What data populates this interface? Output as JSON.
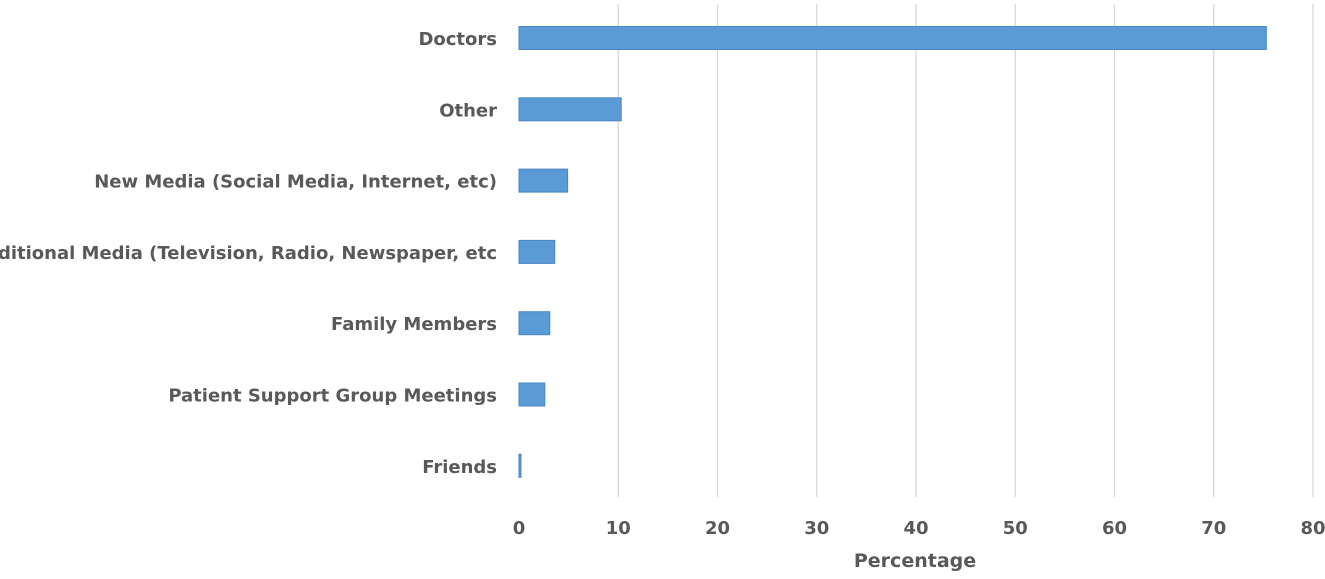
{
  "chart_data": {
    "type": "bar",
    "orientation": "horizontal",
    "title": "",
    "xlabel": "Percentage",
    "ylabel": "",
    "categories": [
      "Doctors",
      "Other",
      "New Media (Social Media, Internet, etc)",
      "Traditional Media (Television, Radio, Newspaper, etc",
      "Family Members",
      "Patient Support Group Meetings",
      "Friends"
    ],
    "values": [
      75.3,
      10.3,
      4.9,
      3.6,
      3.1,
      2.6,
      0.2
    ],
    "xlim": [
      0,
      80
    ],
    "xticks": [
      "0",
      "10",
      "20",
      "30",
      "40",
      "50",
      "60",
      "70",
      "80"
    ],
    "grid": true,
    "legend": "none",
    "colors": {
      "bar": "#5b9bd5",
      "bar_edge": "#4a86c0",
      "grid": "#d9d9d9",
      "text": "#595959"
    }
  }
}
